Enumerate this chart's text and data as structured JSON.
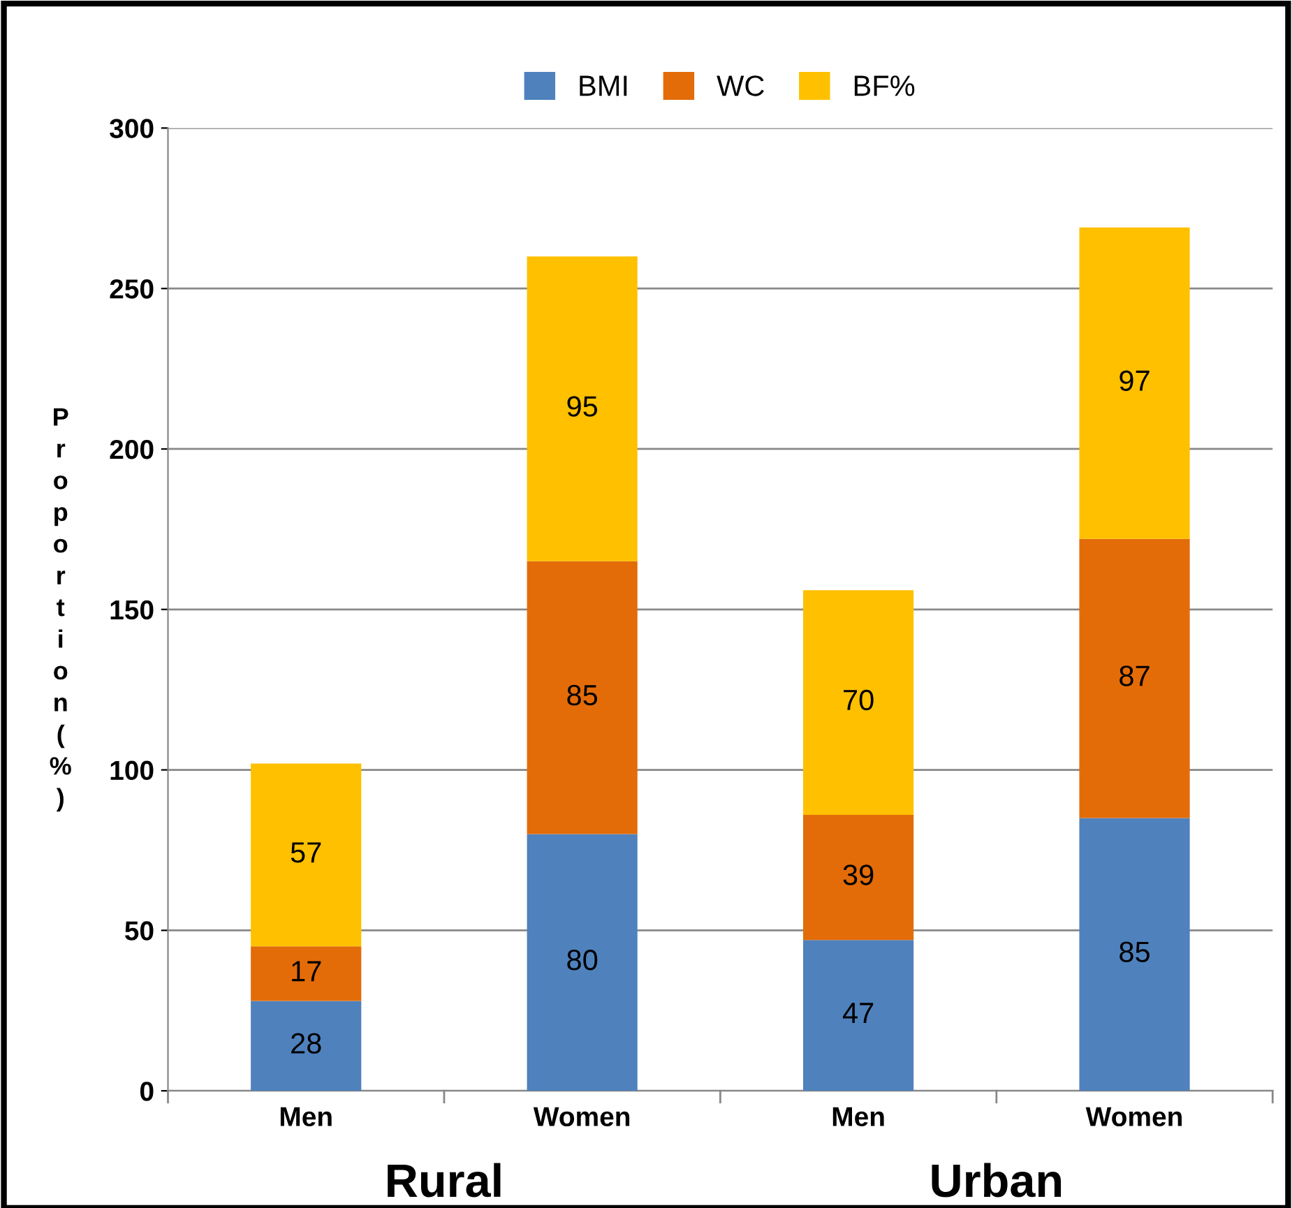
{
  "chart_data": {
    "type": "bar",
    "stacked": true,
    "categories": [
      "Men",
      "Women",
      "Men",
      "Women"
    ],
    "series": [
      {
        "name": "BMI",
        "color": "#4f81bd",
        "values": [
          28,
          80,
          47,
          85
        ]
      },
      {
        "name": "WC",
        "color": "#e36c09",
        "values": [
          17,
          85,
          39,
          87
        ]
      },
      {
        "name": "BF%",
        "color": "#ffc000",
        "values": [
          57,
          95,
          70,
          97
        ]
      }
    ],
    "ylabel": "Proportion (%)",
    "ylim": [
      0,
      300
    ],
    "yticks": [
      0,
      50,
      100,
      150,
      200,
      250,
      300
    ],
    "grid": "y",
    "legend": "top",
    "data_labels": true,
    "annotations": [
      "Rural",
      "Urban"
    ]
  }
}
